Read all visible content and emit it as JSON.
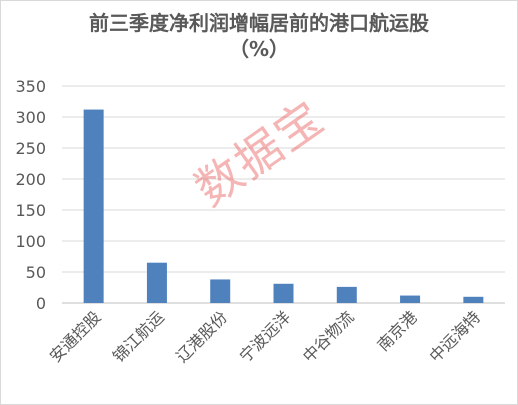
{
  "chart_data": {
    "type": "bar",
    "title": "前三季度净利润增幅居前的港口航运股",
    "subtitle": "（%）",
    "categories": [
      "安通控股",
      "锦江航运",
      "辽港股份",
      "宁波远洋",
      "中谷物流",
      "南京港",
      "中远海特"
    ],
    "values": [
      312,
      65,
      38,
      31,
      26,
      12,
      10
    ],
    "yticks": [
      "0",
      "50",
      "100",
      "150",
      "200",
      "250",
      "300",
      "350"
    ],
    "ylim": [
      0,
      350
    ],
    "grid": true,
    "legend": "none",
    "bar_color": "#4f81bd"
  },
  "watermark": "数据宝"
}
